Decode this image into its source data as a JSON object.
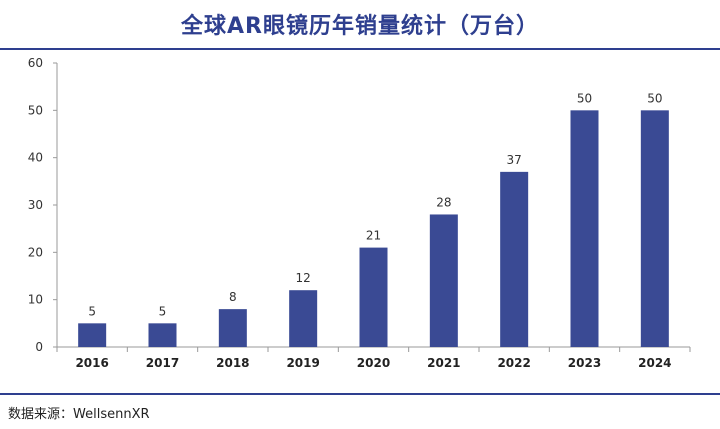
{
  "title": "全球AR眼镜历年销量统计（万台）",
  "source": "数据来源：WellsennXR",
  "colors": {
    "bar": "#3a4a94",
    "accent": "#2e3f8f"
  },
  "chart_data": {
    "type": "bar",
    "title": "全球AR眼镜历年销量统计（万台）",
    "categories": [
      "2016",
      "2017",
      "2018",
      "2019",
      "2020",
      "2021",
      "2022",
      "2023",
      "2024"
    ],
    "values": [
      5,
      5,
      8,
      12,
      21,
      28,
      37,
      50,
      50
    ],
    "data_labels": [
      "5",
      "5",
      "8",
      "12",
      "21",
      "28",
      "37",
      "50",
      "50"
    ],
    "yticks": [
      "0",
      "10",
      "20",
      "30",
      "40",
      "50",
      "60"
    ],
    "ylim": [
      0,
      60
    ],
    "xlabel": "",
    "ylabel": "",
    "grid": false,
    "legend": "none"
  }
}
